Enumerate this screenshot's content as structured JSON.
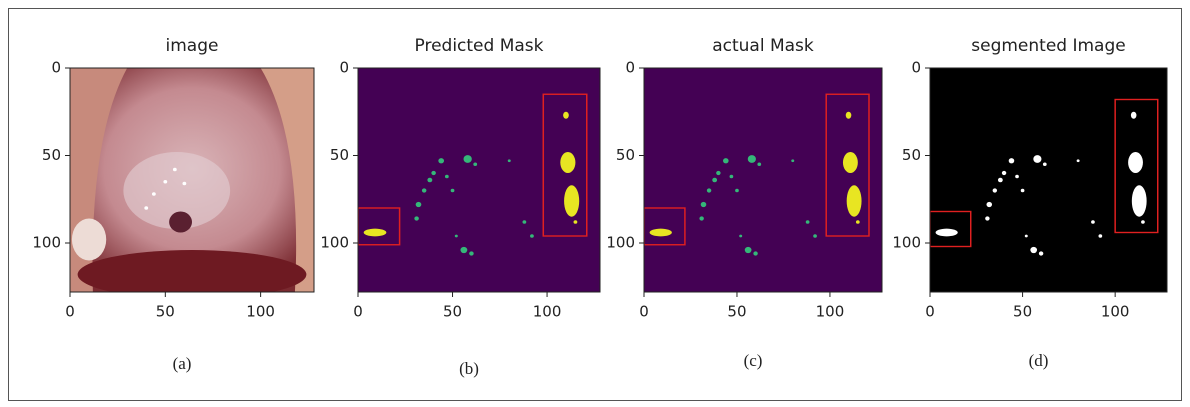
{
  "panels": [
    {
      "title": "image",
      "caption": "(a)",
      "xticks": [
        0,
        50,
        100
      ],
      "yticks": [
        0,
        50,
        100
      ],
      "xlim": [
        0,
        128
      ],
      "ylim": [
        0,
        128
      ]
    },
    {
      "title": "Predicted Mask",
      "caption": "(b)",
      "xticks": [
        0,
        50,
        100
      ],
      "yticks": [
        0,
        50,
        100
      ],
      "xlim": [
        0,
        128
      ],
      "ylim": [
        0,
        128
      ]
    },
    {
      "title": "actual Mask",
      "caption": "(c)",
      "xticks": [
        0,
        50,
        100
      ],
      "yticks": [
        0,
        50,
        100
      ],
      "xlim": [
        0,
        128
      ],
      "ylim": [
        0,
        128
      ]
    },
    {
      "title": "segmented Image",
      "caption": "(d)",
      "xticks": [
        0,
        50,
        100
      ],
      "yticks": [
        0,
        50,
        100
      ],
      "xlim": [
        0,
        128
      ],
      "ylim": [
        0,
        128
      ]
    }
  ]
}
